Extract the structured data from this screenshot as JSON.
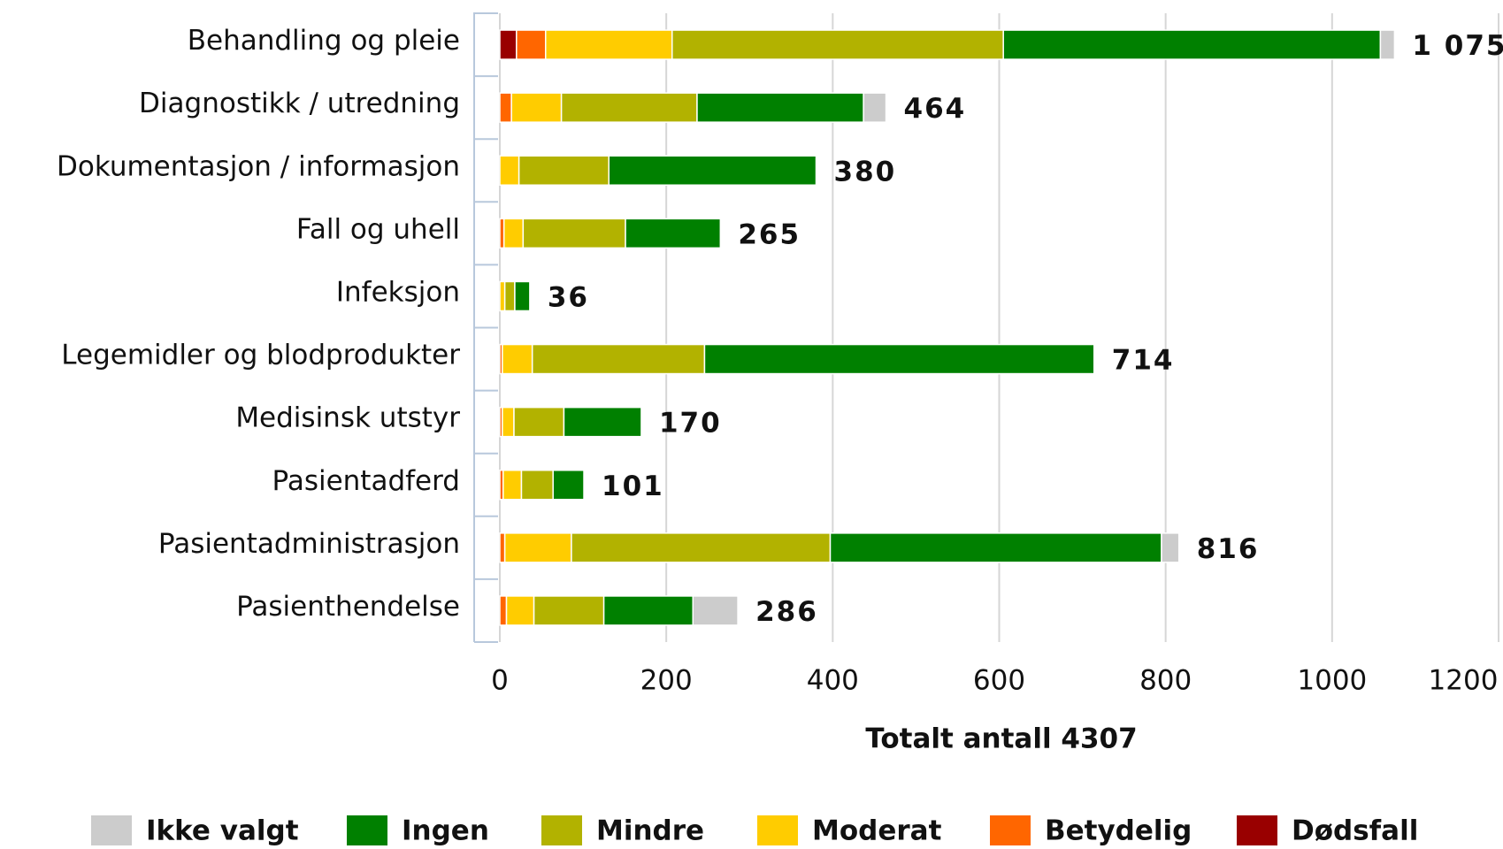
{
  "chart_data": {
    "type": "stacked-bar-horizontal",
    "x_label": "Totalt antall 4307",
    "categories": [
      "Behandling og pleie",
      "Diagnostikk / utredning",
      "Dokumentasjon / informasjon",
      "Fall og uhell",
      "Infeksjon",
      "Legemidler og blodprodukter",
      "Medisinsk utstyr",
      "Pasientadferd",
      "Pasientadministrasjon",
      "Pasienthendelse"
    ],
    "series": [
      {
        "name": "Dødsfall",
        "color": "#990000",
        "values": [
          20,
          0,
          0,
          0,
          0,
          0,
          0,
          0,
          0,
          0
        ]
      },
      {
        "name": "Betydelig",
        "color": "#ff6600",
        "values": [
          35,
          14,
          0,
          5,
          0,
          3,
          3,
          4,
          6,
          8
        ]
      },
      {
        "name": "Moderat",
        "color": "#ffcc00",
        "values": [
          152,
          60,
          23,
          23,
          6,
          36,
          14,
          22,
          80,
          33
        ]
      },
      {
        "name": "Mindre",
        "color": "#b2b200",
        "values": [
          398,
          163,
          108,
          123,
          12,
          207,
          60,
          38,
          311,
          84
        ]
      },
      {
        "name": "Ingen",
        "color": "#008000",
        "values": [
          453,
          200,
          249,
          114,
          18,
          468,
          93,
          37,
          398,
          107
        ]
      },
      {
        "name": "Ikke valgt",
        "color": "#cccccc",
        "values": [
          17,
          27,
          0,
          0,
          0,
          0,
          0,
          0,
          21,
          54
        ]
      }
    ],
    "totals": [
      1075,
      464,
      380,
      265,
      36,
      714,
      170,
      101,
      816,
      286
    ],
    "total_labels": [
      "1 075",
      "464",
      "380",
      "265",
      "36",
      "714",
      "170",
      "101",
      "816",
      "286"
    ],
    "xlim": [
      0,
      1200
    ],
    "xticks": [
      0,
      200,
      400,
      600,
      800,
      1000,
      1200
    ],
    "grid": true
  }
}
